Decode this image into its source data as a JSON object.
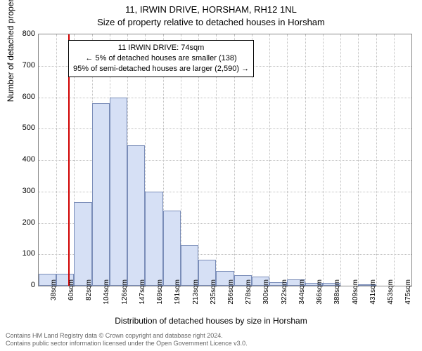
{
  "chart": {
    "type": "histogram",
    "title_main": "11, IRWIN DRIVE, HORSHAM, RH12 1NL",
    "title_sub": "Size of property relative to detached houses in Horsham",
    "y_label": "Number of detached properties",
    "x_label": "Distribution of detached houses by size in Horsham",
    "ylim": [
      0,
      800
    ],
    "ytick_step": 100,
    "y_ticks": [
      0,
      100,
      200,
      300,
      400,
      500,
      600,
      700,
      800
    ],
    "x_tick_labels": [
      "38sqm",
      "60sqm",
      "82sqm",
      "104sqm",
      "126sqm",
      "147sqm",
      "169sqm",
      "191sqm",
      "213sqm",
      "235sqm",
      "256sqm",
      "278sqm",
      "300sqm",
      "322sqm",
      "344sqm",
      "366sqm",
      "388sqm",
      "409sqm",
      "431sqm",
      "453sqm",
      "475sqm"
    ],
    "bar_values": [
      38,
      38,
      265,
      580,
      600,
      448,
      300,
      240,
      130,
      82,
      48,
      33,
      30,
      12,
      20,
      10,
      8,
      0,
      5,
      0,
      0
    ],
    "bar_fill": "#d6e0f5",
    "bar_border": "#7a8db8",
    "grid_color": "#c0c0c0",
    "background_color": "#ffffff",
    "title_fontsize": 13,
    "label_fontsize": 12,
    "tick_fontsize": 11,
    "bar_width": 1.0,
    "marker_line_color": "#d00000",
    "marker_position_index": 1.65,
    "annotation": {
      "line1": "11 IRWIN DRIVE: 74sqm",
      "line2": "← 5% of detached houses are smaller (138)",
      "line3": "95% of semi-detached houses are larger (2,590) →"
    }
  },
  "footer": {
    "line1": "Contains HM Land Registry data © Crown copyright and database right 2024.",
    "line2": "Contains public sector information licensed under the Open Government Licence v3.0."
  }
}
